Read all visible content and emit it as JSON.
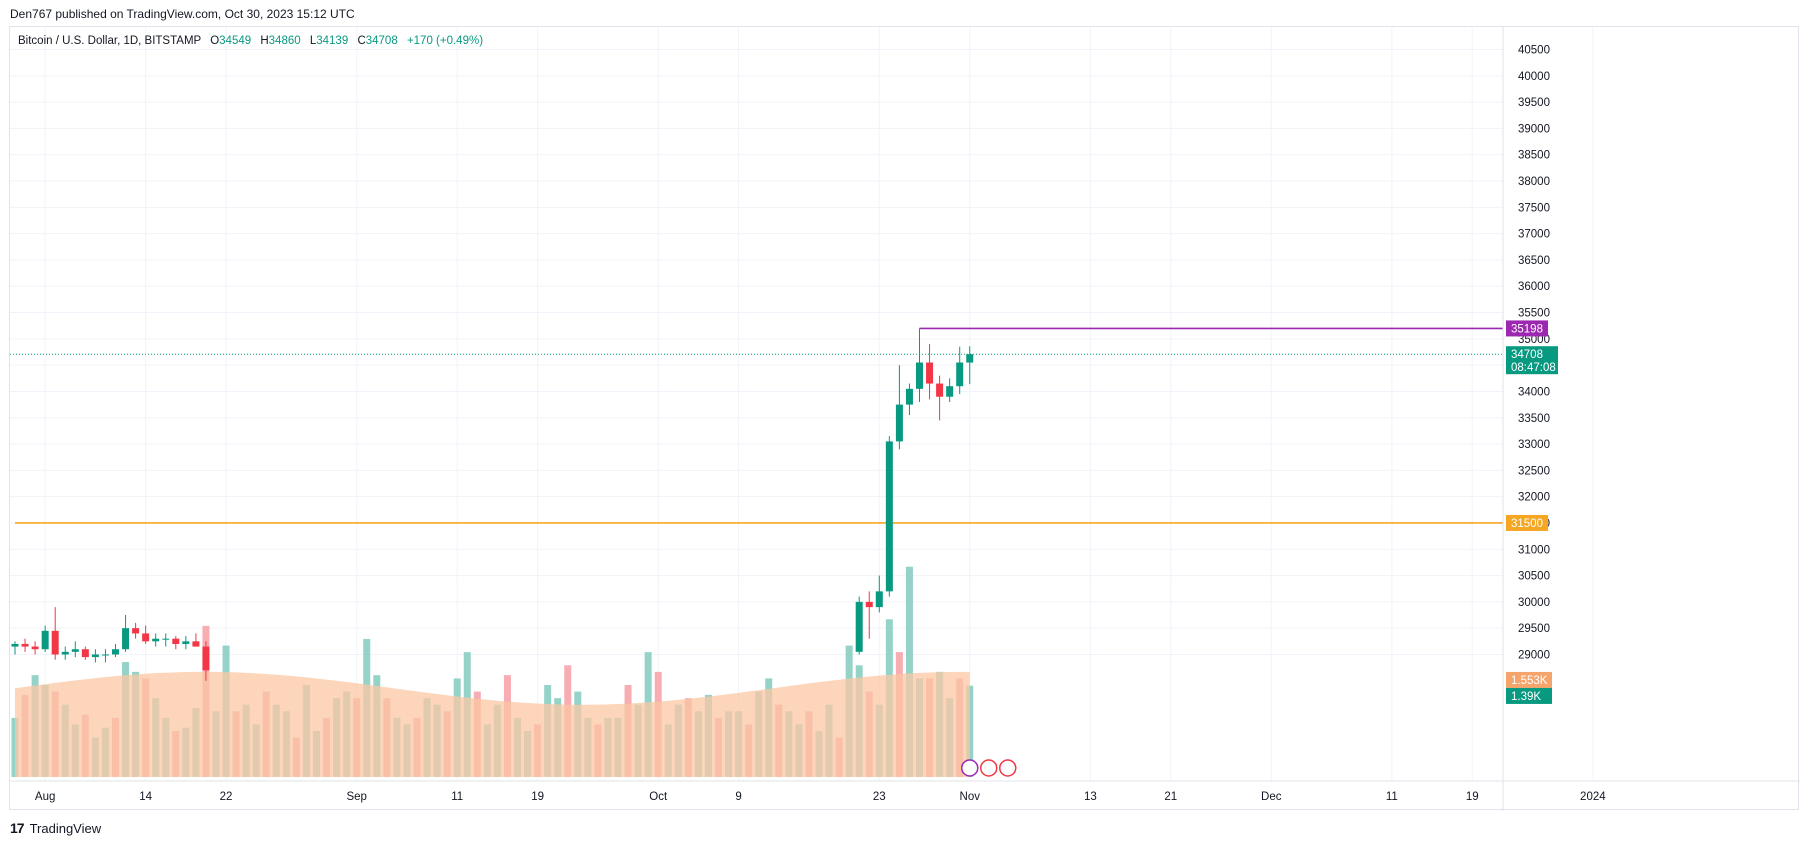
{
  "header": {
    "published": "Den767 published on TradingView.com, Oct 30, 2023 15:12 UTC"
  },
  "legend": {
    "symbol": "Bitcoin / U.S. Dollar, 1D, BITSTAMP",
    "open_label": "O",
    "open": "34549",
    "high_label": "H",
    "high": "34860",
    "low_label": "L",
    "low": "34139",
    "close_label": "C",
    "close": "34708",
    "change": "+170 (+0.49%)"
  },
  "footer": {
    "logo": "17",
    "brand": "TradingView"
  },
  "colors": {
    "up": "#089981",
    "down": "#f23645",
    "vol_up": "#8fd1c6",
    "vol_down": "#f7a9ae",
    "vol_ma_fill": "#fbc7a3",
    "vol_ma_line": "#f5a46b",
    "level_orange": "#f5a623",
    "level_purple": "#9c27b0",
    "grid": "#f0f3fa"
  },
  "chart_data": {
    "type": "candlestick",
    "title": "Bitcoin / U.S. Dollar, 1D, BITSTAMP",
    "ylim": [
      28800,
      40700
    ],
    "y_ticks": [
      29000,
      29500,
      30000,
      30500,
      31000,
      31500,
      32000,
      32500,
      33000,
      33500,
      34000,
      34500,
      35000,
      35500,
      36000,
      36500,
      37000,
      37500,
      38000,
      38500,
      39000,
      39500,
      40000,
      40500
    ],
    "x_labels": [
      "Aug",
      "14",
      "22",
      "Sep",
      "11",
      "19",
      "Oct",
      "9",
      "23",
      "Nov",
      "13",
      "21",
      "Dec",
      "11",
      "19",
      "2024"
    ],
    "x_label_days": [
      3,
      13,
      21,
      34,
      44,
      52,
      64,
      72,
      86,
      95,
      107,
      115,
      125,
      137,
      145,
      157
    ],
    "days_visible": [
      0,
      166
    ],
    "grid": true,
    "candles": [
      {
        "day": 0,
        "o": 29150,
        "h": 29250,
        "l": 29000,
        "c": 29200
      },
      {
        "day": 1,
        "o": 29200,
        "h": 29300,
        "l": 29050,
        "c": 29150
      },
      {
        "day": 2,
        "o": 29150,
        "h": 29250,
        "l": 29000,
        "c": 29100
      },
      {
        "day": 3,
        "o": 29100,
        "h": 29550,
        "l": 29050,
        "c": 29450
      },
      {
        "day": 4,
        "o": 29450,
        "h": 29900,
        "l": 28900,
        "c": 29000
      },
      {
        "day": 5,
        "o": 29000,
        "h": 29150,
        "l": 28900,
        "c": 29050
      },
      {
        "day": 6,
        "o": 29050,
        "h": 29250,
        "l": 28950,
        "c": 29100
      },
      {
        "day": 7,
        "o": 29100,
        "h": 29150,
        "l": 28900,
        "c": 28950
      },
      {
        "day": 8,
        "o": 28950,
        "h": 29100,
        "l": 28850,
        "c": 29000
      },
      {
        "day": 9,
        "o": 29000,
        "h": 29100,
        "l": 28850,
        "c": 29000
      },
      {
        "day": 10,
        "o": 29000,
        "h": 29200,
        "l": 28950,
        "c": 29100
      },
      {
        "day": 11,
        "o": 29100,
        "h": 29750,
        "l": 29050,
        "c": 29500
      },
      {
        "day": 12,
        "o": 29500,
        "h": 29600,
        "l": 29300,
        "c": 29400
      },
      {
        "day": 13,
        "o": 29400,
        "h": 29550,
        "l": 29200,
        "c": 29250
      },
      {
        "day": 14,
        "o": 29250,
        "h": 29400,
        "l": 29150,
        "c": 29300
      },
      {
        "day": 15,
        "o": 29300,
        "h": 29400,
        "l": 29150,
        "c": 29300
      },
      {
        "day": 16,
        "o": 29300,
        "h": 29350,
        "l": 29100,
        "c": 29200
      },
      {
        "day": 17,
        "o": 29200,
        "h": 29350,
        "l": 29100,
        "c": 29250
      },
      {
        "day": 18,
        "o": 29250,
        "h": 29400,
        "l": 29150,
        "c": 29150
      },
      {
        "day": 19,
        "o": 29150,
        "h": 29250,
        "l": 28500,
        "c": 28700
      }
    ],
    "candles_late": [
      {
        "day": 84,
        "o": 29050,
        "h": 30100,
        "l": 29000,
        "c": 30000
      },
      {
        "day": 85,
        "o": 30000,
        "h": 30200,
        "l": 29300,
        "c": 29900
      },
      {
        "day": 86,
        "o": 29900,
        "h": 30500,
        "l": 29800,
        "c": 30200
      },
      {
        "day": 87,
        "o": 30200,
        "h": 33150,
        "l": 30100,
        "c": 33050
      },
      {
        "day": 88,
        "o": 33050,
        "h": 34500,
        "l": 32900,
        "c": 33750
      },
      {
        "day": 89,
        "o": 33750,
        "h": 34150,
        "l": 33550,
        "c": 34050
      },
      {
        "day": 90,
        "o": 34050,
        "h": 35198,
        "l": 33800,
        "c": 34550
      },
      {
        "day": 91,
        "o": 34550,
        "h": 34900,
        "l": 33850,
        "c": 34150
      },
      {
        "day": 92,
        "o": 34150,
        "h": 34300,
        "l": 33450,
        "c": 33900
      },
      {
        "day": 93,
        "o": 33900,
        "h": 34250,
        "l": 33800,
        "c": 34100
      },
      {
        "day": 94,
        "o": 34100,
        "h": 34850,
        "l": 33950,
        "c": 34550
      },
      {
        "day": 95,
        "o": 34549,
        "h": 34860,
        "l": 34139,
        "c": 34708
      }
    ],
    "volume_K": [
      0.9,
      1.25,
      1.55,
      1.4,
      1.3,
      1.1,
      0.8,
      0.95,
      0.6,
      0.75,
      0.9,
      1.75,
      1.6,
      1.5,
      1.2,
      0.9,
      0.7,
      0.75,
      1.05,
      2.3,
      1.0,
      2.0,
      1.0,
      1.1,
      0.8,
      1.3,
      1.1,
      1.0,
      0.6,
      1.4,
      0.7,
      0.9,
      1.2,
      1.3,
      1.2,
      2.1,
      1.55,
      1.2,
      0.9,
      0.8,
      0.9,
      1.2,
      1.1,
      1.0,
      1.5,
      1.9,
      1.3,
      0.8,
      1.1,
      1.55,
      0.9,
      0.7,
      0.8,
      1.4,
      1.2,
      1.7,
      1.3,
      0.9,
      0.8,
      0.9,
      0.9,
      1.4,
      1.1,
      1.9,
      1.6,
      0.8,
      1.1,
      1.2,
      1.0,
      1.25,
      0.9,
      1.0,
      1.0,
      0.8,
      1.3,
      1.5,
      1.1,
      1.0,
      0.8,
      1.0,
      0.7,
      1.1,
      0.6,
      2.0,
      1.7,
      1.3,
      1.1,
      2.4,
      1.9,
      3.2,
      1.5,
      1.5,
      1.6,
      1.2,
      1.5,
      1.39
    ],
    "volume_max_display_K": 3.5,
    "volume_ma_K": 1.553,
    "levels": [
      {
        "name": "resistance",
        "value": 31500,
        "label": "31500",
        "color": "#f5a623",
        "from_day": 0
      },
      {
        "name": "high",
        "value": 35198,
        "label": "35198",
        "color": "#9c27b0",
        "from_day": 90
      }
    ],
    "last_price": {
      "value": 34708,
      "label": "34708",
      "countdown": "08:47:08"
    },
    "volume_labels": {
      "ma": "1.553K",
      "last": "1.39K"
    }
  }
}
